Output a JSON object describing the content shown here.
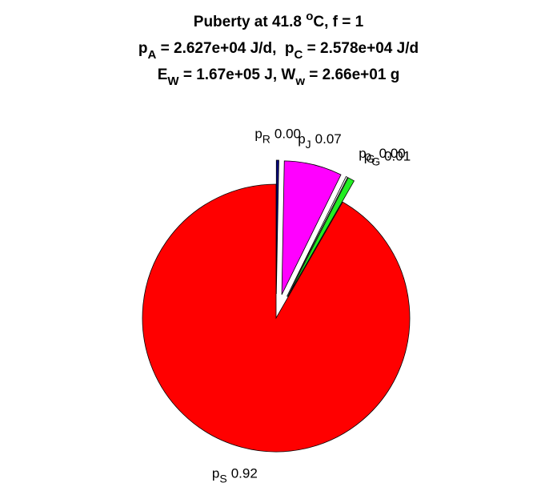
{
  "chart_data": {
    "type": "pie",
    "title": [
      [
        {
          "text": "Puberty at 41.8 "
        },
        {
          "text": "o",
          "shift": "sup"
        },
        {
          "text": "C, f = 1"
        }
      ],
      [
        {
          "text": "p"
        },
        {
          "text": "A",
          "shift": "sub"
        },
        {
          "text": " = 2.627e+04 J/d,  p"
        },
        {
          "text": "C",
          "shift": "sub"
        },
        {
          "text": " = 2.578e+04 J/d"
        }
      ],
      [
        {
          "text": "E"
        },
        {
          "text": "W",
          "shift": "sub"
        },
        {
          "text": " = 1.67e+05 J, W"
        },
        {
          "text": "w",
          "shift": "sub"
        },
        {
          "text": " = 2.66e+01 g"
        }
      ]
    ],
    "labels": [
      {
        "main": "p",
        "sub": "R"
      },
      {
        "main": "p",
        "sub": "J"
      },
      {
        "main": "p",
        "sub": "G"
      },
      {
        "main": "p",
        "sub": "G"
      },
      {
        "main": "p",
        "sub": "S"
      }
    ],
    "values": [
      0.003,
      0.07,
      0.002,
      0.008,
      0.917
    ],
    "value_labels": [
      "0.00",
      "0.07",
      "0.00",
      "0.01",
      "0.92"
    ],
    "colors": [
      "#00007f",
      "#ff00ff",
      "#ffffff",
      "#22ee22",
      "#ff0000"
    ],
    "explode": [
      true,
      true,
      true,
      true,
      false
    ]
  }
}
